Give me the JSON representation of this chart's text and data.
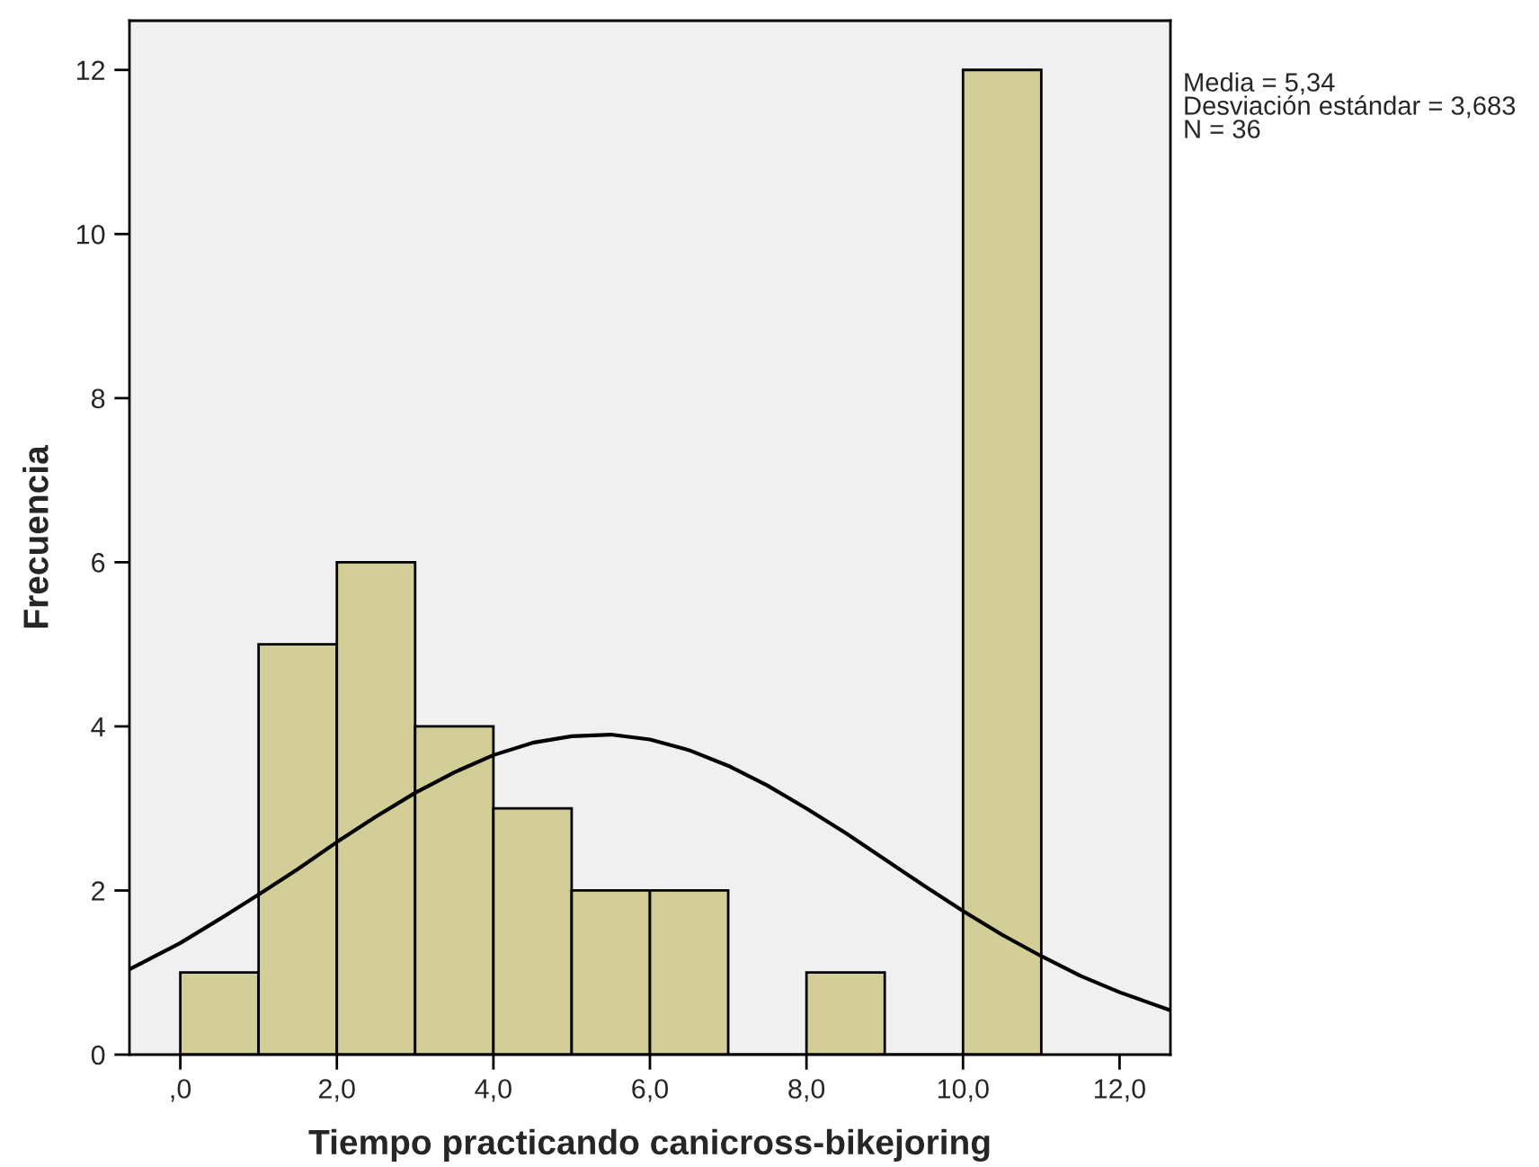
{
  "chart_data": {
    "type": "histogram",
    "xlabel": "Tiempo practicando canicross-bikejoring",
    "ylabel": "Frecuencia",
    "bins": [
      0,
      1,
      2,
      3,
      4,
      5,
      6,
      7,
      8,
      9,
      10,
      11
    ],
    "values": [
      1,
      5,
      6,
      4,
      3,
      2,
      2,
      0,
      1,
      0,
      12
    ],
    "color": "#d3ce97",
    "series": [
      {
        "type": "line",
        "color": "#000000",
        "x": [
          -0.65,
          0,
          0.5,
          1,
          1.5,
          2,
          2.5,
          3,
          3.5,
          4,
          4.5,
          5,
          5.5,
          6,
          6.5,
          7,
          7.5,
          8,
          8.5,
          9,
          9.5,
          10,
          10.5,
          11,
          11.5,
          12,
          12.65
        ],
        "values": [
          1.04,
          1.36,
          1.65,
          1.95,
          2.26,
          2.59,
          2.9,
          3.19,
          3.44,
          3.65,
          3.8,
          3.88,
          3.9,
          3.84,
          3.71,
          3.52,
          3.28,
          3.0,
          2.7,
          2.38,
          2.06,
          1.75,
          1.46,
          1.2,
          0.96,
          0.76,
          0.54
        ]
      }
    ],
    "xlim": [
      -0.65,
      12.65
    ],
    "xticks": [
      {
        "value": 0,
        "label": ",0"
      },
      {
        "value": 2,
        "label": "2,0"
      },
      {
        "value": 4,
        "label": "4,0"
      },
      {
        "value": 6,
        "label": "6,0"
      },
      {
        "value": 8,
        "label": "8,0"
      },
      {
        "value": 10,
        "label": "10,0"
      },
      {
        "value": 12,
        "label": "12,0"
      }
    ],
    "ylim": [
      0,
      12.6
    ],
    "yticks": [
      0,
      2,
      4,
      6,
      8,
      10,
      12
    ],
    "annotations": [
      "Media = 5,34",
      "Desviación estándar = 3,683",
      "N = 36"
    ]
  }
}
